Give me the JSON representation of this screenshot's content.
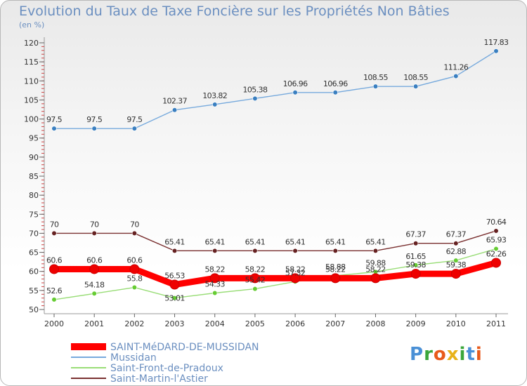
{
  "header": {
    "title": "Evolution du Taux de Taxe Foncière sur les Propriétés Non Bâties",
    "unit": "(en %)"
  },
  "logo": {
    "text": "Proxiti",
    "letters": [
      "P",
      "r",
      "o",
      "x",
      "i",
      "t",
      "i"
    ]
  },
  "chart_data": {
    "type": "line",
    "title": "Evolution du Taux de Taxe Foncière sur les Propriétés Non Bâties",
    "ylabel": "(en %)",
    "xlabel": "",
    "ylim": [
      50,
      120
    ],
    "yticks": [
      50,
      55,
      60,
      65,
      70,
      75,
      80,
      85,
      90,
      95,
      100,
      105,
      110,
      115,
      120
    ],
    "grid": false,
    "legend_position": "bottom-left",
    "x": [
      2000,
      2001,
      2002,
      2003,
      2004,
      2005,
      2006,
      2007,
      2008,
      2009,
      2010,
      2011
    ],
    "series": [
      {
        "name": "SAINT-MéDARD-DE-MUSSIDAN",
        "color": "#ff0000",
        "marker_color": "#ee0000",
        "values": [
          60.6,
          60.6,
          60.6,
          56.53,
          58.22,
          58.22,
          58.22,
          58.22,
          58.22,
          59.38,
          59.38,
          62.26
        ],
        "labels": [
          "60.6",
          "60.6",
          "60.6",
          "56.53",
          "58.22",
          "58.22",
          "58.22",
          "58.22",
          "58.22",
          "59.38",
          "59.38",
          "62.26"
        ]
      },
      {
        "name": "Mussidan",
        "color": "#77aadd",
        "marker_color": "#3a7fc0",
        "values": [
          97.5,
          97.5,
          97.5,
          102.37,
          103.82,
          105.38,
          106.96,
          106.96,
          108.55,
          108.55,
          111.26,
          117.83
        ],
        "labels": [
          "97.5",
          "97.5",
          "97.5",
          "102.37",
          "103.82",
          "105.38",
          "106.96",
          "106.96",
          "108.55",
          "108.55",
          "111.26",
          "117.83"
        ]
      },
      {
        "name": "Saint-Front-de-Pradoux",
        "color": "#99dd77",
        "marker_color": "#66cc33",
        "values": [
          52.6,
          54.18,
          55.8,
          53.01,
          54.33,
          55.42,
          57.32,
          58.88,
          59.88,
          61.65,
          62.88,
          65.93
        ],
        "labels": [
          "52.6",
          "54.18",
          "55.8",
          "53.01",
          "54.33",
          "55.42",
          "57.32",
          "58.88",
          "59.88",
          "61.65",
          "62.88",
          "65.93"
        ]
      },
      {
        "name": "Saint-Martin-l'Astier",
        "color": "#7a3030",
        "marker_color": "#662222",
        "values": [
          70,
          70,
          70,
          65.41,
          65.41,
          65.41,
          65.41,
          65.41,
          65.41,
          67.37,
          67.37,
          70.64
        ],
        "labels": [
          "70",
          "70",
          "70",
          "65.41",
          "65.41",
          "65.41",
          "65.41",
          "65.41",
          "65.41",
          "67.37",
          "67.37",
          "70.64"
        ]
      }
    ]
  }
}
